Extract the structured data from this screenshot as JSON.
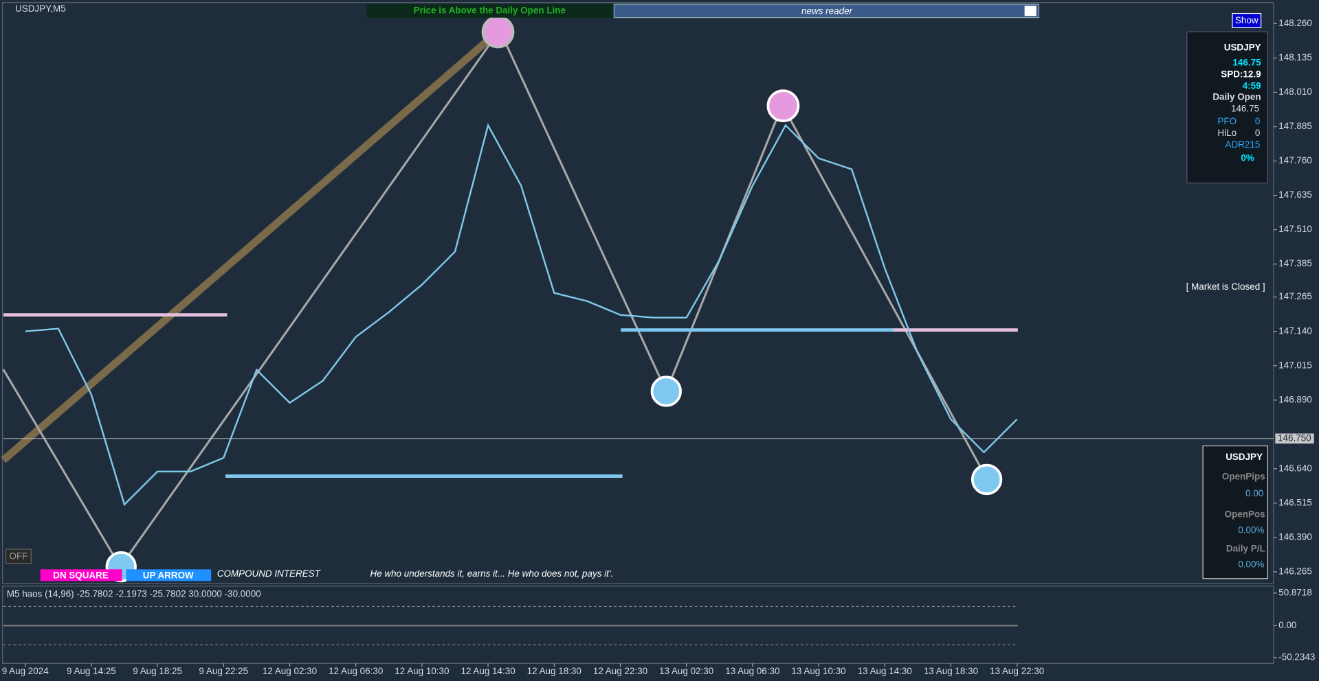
{
  "window_title": "USDJPY,M5",
  "banner": "Price is Above the Daily Open Line",
  "news_reader": "news reader",
  "show_button": "Show",
  "info_panel": {
    "symbol": "USDJPY",
    "price": "146.75",
    "spread": "SPD:12.9",
    "timer": "4:59",
    "daily_open_label": "Daily Open",
    "daily_open": "146.75",
    "pfo_label": "PFO",
    "pfo": "0",
    "hilo_label": "HiLo",
    "hilo": "0",
    "adr_label": "ADR215",
    "adr": "0%"
  },
  "market_status": "[ Market is Closed ]",
  "account_panel": {
    "symbol": "USDJPY",
    "open_pips_label": "OpenPips",
    "open_pips": "0.00",
    "open_pos_label": "OpenPos",
    "open_pos": "0.00%",
    "daily_pl_label": "Daily P/L",
    "daily_pl": "0.00%"
  },
  "off_button": "OFF",
  "dn_square": "DN SQUARE",
  "up_arrow": "UP ARROW",
  "compound": "COMPOUND INTEREST",
  "quote": "He who understands it, earns it... He who does not, pays it'.",
  "chart_data": {
    "type": "line",
    "categories": [
      "9 Aug 2024",
      null,
      "9 Aug 14:25",
      null,
      "9 Aug 18:25",
      null,
      "9 Aug 22:25",
      null,
      "12 Aug 02:30",
      null,
      "12 Aug 06:30",
      null,
      "12 Aug 10:30",
      null,
      "12 Aug 14:30",
      null,
      "12 Aug 18:30",
      null,
      "12 Aug 22:30",
      null,
      "13 Aug 02:30",
      null,
      "13 Aug 06:30",
      null,
      "13 Aug 10:30",
      null,
      "13 Aug 14:30",
      null,
      "13 Aug 18:30",
      null,
      "13 Aug 22:30"
    ],
    "series": [
      {
        "color": "#7fc8e8",
        "values": [
          147.14,
          147.15,
          146.91,
          146.51,
          146.63,
          146.63,
          146.68,
          147.0,
          146.88,
          146.96,
          147.12,
          147.21,
          147.31,
          147.43,
          147.89,
          147.67,
          147.28,
          147.25,
          147.2,
          147.19,
          147.19,
          147.4,
          147.67,
          147.89,
          147.77,
          147.73,
          147.37,
          147.06,
          146.82,
          146.7,
          146.82
        ]
      }
    ],
    "ylim": [
      146.216,
      148.346
    ],
    "yticks": [
      {
        "value": 148.26,
        "label": "148.260"
      },
      {
        "value": 148.135,
        "label": "148.135"
      },
      {
        "value": 148.01,
        "label": "148.010"
      },
      {
        "value": 147.885,
        "label": "147.885"
      },
      {
        "value": 147.76,
        "label": "147.760"
      },
      {
        "value": 147.635,
        "label": "147.635"
      },
      {
        "value": 147.51,
        "label": "147.510"
      },
      {
        "value": 147.385,
        "label": "147.385"
      },
      {
        "value": 147.265,
        "label": "147.265"
      },
      {
        "value": 147.14,
        "label": "147.140"
      },
      {
        "value": 147.015,
        "label": "147.015"
      },
      {
        "value": 146.89,
        "label": "146.890"
      },
      {
        "value": 146.64,
        "label": "146.640"
      },
      {
        "value": 146.515,
        "label": "146.515"
      },
      {
        "value": 146.39,
        "label": "146.390"
      },
      {
        "value": 146.265,
        "label": "146.265"
      }
    ],
    "current_price": {
      "value": 146.75,
      "label": "146.750"
    }
  },
  "oscillator": {
    "label": "M5 haos (14,96) -25.7802 -2.1973 -25.7802 30.0000 -30.0000",
    "ylim": [
      -57.8,
      60.4
    ],
    "yticks": [
      50.8718,
      {
        "value": 0,
        "label": "0.00"
      },
      -50.2343
    ]
  }
}
